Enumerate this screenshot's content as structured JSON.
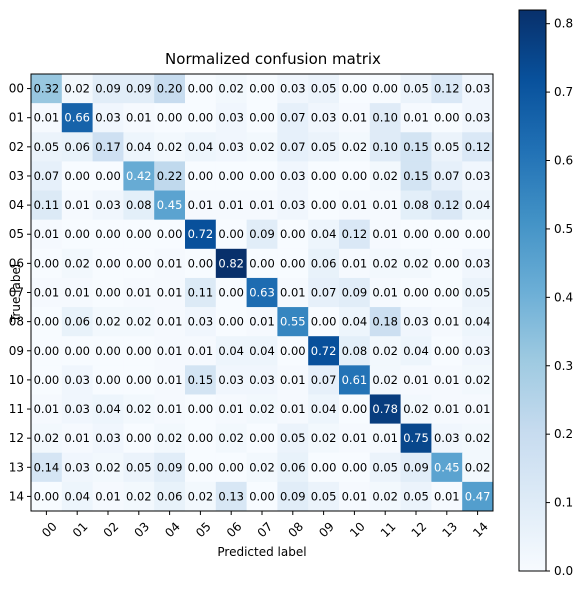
{
  "chart_data": {
    "type": "heatmap",
    "title": "Normalized confusion matrix",
    "xlabel": "Predicted label",
    "ylabel": "True label",
    "x_categories": [
      "00",
      "01",
      "02",
      "03",
      "04",
      "05",
      "06",
      "07",
      "08",
      "09",
      "10",
      "11",
      "12",
      "13",
      "14"
    ],
    "y_categories": [
      "00",
      "01",
      "02",
      "03",
      "04",
      "05",
      "06",
      "07",
      "08",
      "09",
      "10",
      "11",
      "12",
      "13",
      "14"
    ],
    "values": [
      [
        0.32,
        0.02,
        0.09,
        0.09,
        0.2,
        0.0,
        0.02,
        0.0,
        0.03,
        0.05,
        0.0,
        0.0,
        0.05,
        0.12,
        0.03
      ],
      [
        0.01,
        0.66,
        0.03,
        0.01,
        0.0,
        0.0,
        0.03,
        0.0,
        0.07,
        0.03,
        0.01,
        0.1,
        0.01,
        0.0,
        0.03
      ],
      [
        0.05,
        0.06,
        0.17,
        0.04,
        0.02,
        0.04,
        0.03,
        0.02,
        0.07,
        0.05,
        0.02,
        0.1,
        0.15,
        0.05,
        0.12
      ],
      [
        0.07,
        0.0,
        0.0,
        0.42,
        0.22,
        0.0,
        0.0,
        0.0,
        0.03,
        0.0,
        0.0,
        0.02,
        0.15,
        0.07,
        0.03
      ],
      [
        0.11,
        0.01,
        0.03,
        0.08,
        0.45,
        0.01,
        0.01,
        0.01,
        0.03,
        0.0,
        0.01,
        0.01,
        0.08,
        0.12,
        0.04
      ],
      [
        0.01,
        0.0,
        0.0,
        0.0,
        0.0,
        0.72,
        0.0,
        0.09,
        0.0,
        0.04,
        0.12,
        0.01,
        0.0,
        0.0,
        0.0
      ],
      [
        0.0,
        0.02,
        0.0,
        0.0,
        0.01,
        0.0,
        0.82,
        0.0,
        0.0,
        0.06,
        0.01,
        0.02,
        0.02,
        0.0,
        0.03
      ],
      [
        0.01,
        0.01,
        0.0,
        0.01,
        0.01,
        0.11,
        0.0,
        0.63,
        0.01,
        0.07,
        0.09,
        0.01,
        0.0,
        0.0,
        0.05
      ],
      [
        0.0,
        0.06,
        0.02,
        0.02,
        0.01,
        0.03,
        0.0,
        0.01,
        0.55,
        0.0,
        0.04,
        0.18,
        0.03,
        0.01,
        0.04
      ],
      [
        0.0,
        0.0,
        0.0,
        0.0,
        0.01,
        0.01,
        0.04,
        0.04,
        0.0,
        0.72,
        0.08,
        0.02,
        0.04,
        0.0,
        0.03
      ],
      [
        0.0,
        0.03,
        0.0,
        0.0,
        0.01,
        0.15,
        0.03,
        0.03,
        0.01,
        0.07,
        0.61,
        0.02,
        0.01,
        0.01,
        0.02
      ],
      [
        0.01,
        0.03,
        0.04,
        0.02,
        0.01,
        0.0,
        0.01,
        0.02,
        0.01,
        0.04,
        0.0,
        0.78,
        0.02,
        0.01,
        0.01
      ],
      [
        0.02,
        0.01,
        0.03,
        0.0,
        0.02,
        0.0,
        0.02,
        0.0,
        0.05,
        0.02,
        0.01,
        0.01,
        0.75,
        0.03,
        0.02
      ],
      [
        0.14,
        0.03,
        0.02,
        0.05,
        0.09,
        0.0,
        0.0,
        0.02,
        0.06,
        0.0,
        0.0,
        0.05,
        0.09,
        0.45,
        0.02
      ],
      [
        0.0,
        0.04,
        0.01,
        0.02,
        0.06,
        0.02,
        0.13,
        0.0,
        0.09,
        0.05,
        0.01,
        0.02,
        0.05,
        0.01,
        0.47
      ]
    ],
    "colormap": "Blues",
    "color_min": 0.0,
    "color_max": 0.82,
    "colorbar_ticks": [
      "0.0",
      "0.1",
      "0.2",
      "0.3",
      "0.4",
      "0.5",
      "0.6",
      "0.7",
      "0.8"
    ],
    "colorbar_tick_values": [
      0.0,
      0.1,
      0.2,
      0.3,
      0.4,
      0.5,
      0.6,
      0.7,
      0.8
    ],
    "text_color_light": "#ffffff",
    "text_color_dark": "#000000"
  }
}
